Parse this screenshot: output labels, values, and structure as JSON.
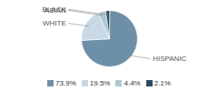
{
  "chart_data": {
    "type": "pie",
    "categories": [
      "HISPANIC",
      "WHITE",
      "ASIAN",
      "BLACK"
    ],
    "values": [
      73.9,
      19.5,
      4.4,
      2.1
    ],
    "value_labels": [
      "73.9%",
      "19.5%",
      "4.4%",
      "2.1%"
    ],
    "colors": [
      "#6e8fa8",
      "#c8d9e5",
      "#b0c8d4",
      "#2c4a5e"
    ],
    "legend": "bottom"
  }
}
